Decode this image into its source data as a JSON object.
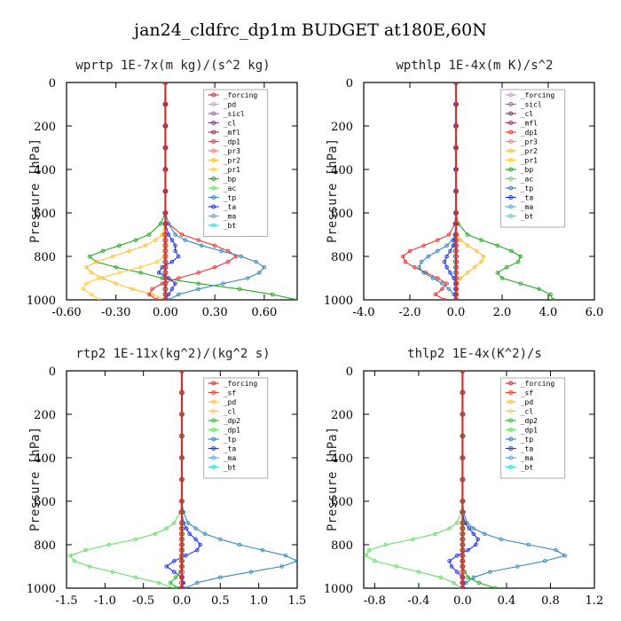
{
  "figure": {
    "title": "jan24_cldfrc_dp1m  BUDGET at180E,60N"
  },
  "colors": {
    "forcing": "#cc3333",
    "pd": "#cc99cc",
    "sicl": "#9966aa",
    "cl": "#7a3b6e",
    "mfl": "#993366",
    "dp1": "#ee3333",
    "pr3": "#ff7777",
    "pr2": "#ffbb33",
    "pr1": "#ffcc33",
    "bp": "#22aa22",
    "ac": "#66dd66",
    "tp": "#3388bb",
    "ta": "#2233ee",
    "ma": "#55aadd",
    "bt": "#33dddd",
    "sf": "#ee4422",
    "dp2": "#33bb33",
    "legend_border": "#999999"
  },
  "chart_data": [
    {
      "type": "line",
      "panel": "top-left",
      "title": "wprtp  1E-7x(m kg)/(s^2 kg)",
      "ylabel": "Pressure [hPa]",
      "xlabel": "",
      "xlim": [
        -0.6,
        0.8
      ],
      "ylim": [
        1000,
        0
      ],
      "xticks": [
        "-0.60",
        "-0.30",
        "0.00",
        "0.30",
        "0.60"
      ],
      "xtick_values": [
        -0.6,
        -0.3,
        0.0,
        0.3,
        0.6
      ],
      "yticks": [
        "0",
        "200",
        "400",
        "600",
        "800",
        "1000"
      ],
      "ytick_values": [
        0,
        200,
        400,
        600,
        800,
        1000
      ],
      "legend_position": "top-right",
      "legend": [
        "_forcing",
        "_pd",
        "_sicl",
        "_cl",
        "_mfl",
        "_dp1",
        "_pr3",
        "_pr2",
        "_pr1",
        "_bp",
        "_ac",
        "_tp",
        "_ta",
        "_ma",
        "_bt"
      ],
      "legend_colors": [
        "forcing",
        "pd",
        "sicl",
        "cl",
        "mfl",
        "dp1",
        "pr3",
        "pr2",
        "pr1",
        "bp",
        "ac",
        "tp",
        "ta",
        "ma",
        "bt"
      ],
      "pressure": [
        0,
        100,
        200,
        300,
        400,
        500,
        600,
        650,
        700,
        725,
        750,
        775,
        800,
        825,
        850,
        875,
        900,
        925,
        950,
        975,
        1000
      ],
      "series": [
        {
          "color": "bt",
          "values": [
            0,
            0,
            0,
            0,
            0,
            0,
            0,
            0,
            0,
            0,
            0,
            0,
            0,
            0,
            0,
            0,
            0,
            0,
            0,
            0,
            0
          ]
        },
        {
          "color": "bp",
          "values": [
            0,
            0,
            0,
            0,
            0,
            0,
            0,
            -0.03,
            -0.1,
            -0.18,
            -0.28,
            -0.38,
            -0.46,
            -0.42,
            -0.3,
            -0.15,
            -0.02,
            0.2,
            0.45,
            0.65,
            0.8
          ]
        },
        {
          "color": "pr2",
          "values": [
            0,
            0,
            0,
            0,
            0,
            0,
            0,
            0,
            -0.02,
            -0.06,
            -0.12,
            -0.22,
            -0.32,
            -0.42,
            -0.48,
            -0.45,
            -0.38,
            -0.3,
            -0.2,
            -0.08,
            0
          ]
        },
        {
          "color": "pr1",
          "values": [
            0,
            0,
            0,
            0,
            0,
            0,
            0,
            0,
            0,
            0,
            0,
            0,
            0,
            -0.05,
            -0.15,
            -0.28,
            -0.4,
            -0.48,
            -0.5,
            -0.45,
            -0.4
          ]
        },
        {
          "color": "dp1",
          "values": [
            0,
            0,
            0,
            0,
            0,
            0,
            0,
            0.02,
            0.1,
            0.2,
            0.3,
            0.38,
            0.43,
            0.38,
            0.3,
            0.2,
            0.08,
            -0.02,
            -0.08,
            -0.1,
            -0.05
          ]
        },
        {
          "color": "tp",
          "values": [
            0,
            0,
            0,
            0,
            0,
            0,
            0,
            0.02,
            0.06,
            0.12,
            0.22,
            0.34,
            0.46,
            0.55,
            0.6,
            0.57,
            0.5,
            0.35,
            0.2,
            0.08,
            0.02
          ]
        },
        {
          "color": "ta",
          "values": [
            0,
            0,
            0,
            0,
            0,
            0,
            0,
            0,
            0.02,
            0.04,
            0.06,
            0.06,
            0.08,
            0.04,
            -0.02,
            -0.04,
            0.02,
            0.06,
            0.04,
            0.02,
            0
          ]
        },
        {
          "color": "forcing",
          "values": [
            0,
            0,
            0,
            0,
            0,
            0,
            0,
            0,
            0,
            0,
            0,
            0,
            0,
            0,
            0,
            0,
            0,
            0,
            0,
            0,
            0
          ]
        }
      ]
    },
    {
      "type": "line",
      "panel": "top-right",
      "title": "wpthlp  1E-4x(m K)/s^2",
      "ylabel": "Pressure [hPa]",
      "xlabel": "",
      "xlim": [
        -4.0,
        6.0
      ],
      "ylim": [
        1000,
        0
      ],
      "xticks": [
        "-4.0",
        "-2.0",
        "0.0",
        "2.0",
        "4.0",
        "6.0"
      ],
      "xtick_values": [
        -4,
        -2,
        0,
        2,
        4,
        6
      ],
      "yticks": [
        "0",
        "200",
        "400",
        "600",
        "800",
        "1000"
      ],
      "ytick_values": [
        0,
        200,
        400,
        600,
        800,
        1000
      ],
      "legend_position": "top-right",
      "legend": [
        "_forcing",
        "_sicl",
        "_cl",
        "_mfl",
        "_dp1",
        "_pr3",
        "_pr2",
        "_pr1",
        "_bp",
        "_ac",
        "_tp",
        "_ta",
        "_ma",
        "_bt"
      ],
      "legend_colors": [
        "pd",
        "sicl",
        "cl",
        "mfl",
        "dp1",
        "pr3",
        "pr2",
        "pr1",
        "bp",
        "ac",
        "tp",
        "ta",
        "ma",
        "bt"
      ],
      "pressure": [
        0,
        100,
        200,
        300,
        400,
        500,
        600,
        650,
        700,
        725,
        750,
        775,
        800,
        825,
        850,
        875,
        900,
        925,
        950,
        975,
        1000
      ],
      "series": [
        {
          "color": "bt",
          "values": [
            0,
            0,
            0,
            0,
            0,
            0,
            0,
            0,
            0,
            0,
            0,
            0,
            0,
            0,
            0,
            0,
            0,
            0,
            0,
            0,
            0
          ]
        },
        {
          "color": "bp",
          "values": [
            0,
            0,
            0,
            0,
            0,
            0,
            0,
            0.1,
            0.5,
            1.1,
            1.8,
            2.4,
            2.8,
            2.7,
            2.2,
            1.8,
            2.0,
            2.8,
            3.6,
            4.1,
            4.2
          ]
        },
        {
          "color": "pr2",
          "values": [
            0,
            0,
            0,
            0,
            0,
            0,
            0,
            0,
            0.05,
            0.2,
            0.5,
            0.9,
            1.2,
            1.1,
            0.8,
            0.5,
            0.2,
            0.05,
            0,
            0,
            0
          ]
        },
        {
          "color": "dp1",
          "values": [
            0,
            0,
            0,
            0,
            0,
            0,
            0,
            -0.05,
            -0.3,
            -0.8,
            -1.4,
            -2.0,
            -2.3,
            -2.2,
            -1.8,
            -1.3,
            -0.8,
            -0.4,
            -0.6,
            -0.9,
            -0.5
          ]
        },
        {
          "color": "tp",
          "values": [
            0,
            0,
            0,
            0,
            0,
            0,
            0,
            0,
            -0.05,
            -0.15,
            -0.4,
            -0.8,
            -1.2,
            -1.5,
            -1.6,
            -1.4,
            -1.0,
            -0.6,
            -0.3,
            -0.1,
            0
          ]
        },
        {
          "color": "ta",
          "values": [
            0,
            0,
            0,
            0,
            0,
            0,
            0,
            0,
            -0.02,
            -0.06,
            -0.12,
            -0.25,
            -0.4,
            -0.5,
            -0.4,
            -0.25,
            -0.1,
            0,
            0,
            0,
            0
          ]
        },
        {
          "color": "forcing",
          "values": [
            0,
            0,
            0,
            0,
            0,
            0,
            0,
            0,
            0,
            0,
            0,
            0,
            0,
            0,
            0,
            0,
            0,
            0,
            0,
            0,
            0
          ]
        }
      ]
    },
    {
      "type": "line",
      "panel": "bottom-left",
      "title": "rtp2  1E-11x(kg^2)/(kg^2 s)",
      "ylabel": "Pressure [hPa]",
      "xlabel": "",
      "xlim": [
        -1.5,
        1.5
      ],
      "ylim": [
        1000,
        0
      ],
      "xticks": [
        "-1.5",
        "-1.0",
        "-0.5",
        "0.0",
        "0.5",
        "1.0",
        "1.5"
      ],
      "xtick_values": [
        -1.5,
        -1.0,
        -0.5,
        0.0,
        0.5,
        1.0,
        1.5
      ],
      "yticks": [
        "0",
        "200",
        "400",
        "600",
        "800",
        "1000"
      ],
      "ytick_values": [
        0,
        200,
        400,
        600,
        800,
        1000
      ],
      "legend_position": "top-right",
      "legend": [
        "_forcing",
        "_sf",
        "_pd",
        "_cl",
        "_dp2",
        "_dp1",
        "_tp",
        "_ta",
        "_ma",
        "_bt"
      ],
      "legend_colors": [
        "forcing",
        "sf",
        "pr2",
        "pr1",
        "dp2",
        "ac",
        "tp",
        "ta",
        "ma",
        "bt"
      ],
      "pressure": [
        0,
        100,
        200,
        300,
        400,
        500,
        600,
        650,
        700,
        725,
        750,
        775,
        800,
        825,
        850,
        875,
        900,
        925,
        950,
        975,
        1000
      ],
      "series": [
        {
          "color": "ac",
          "values": [
            0,
            0,
            0,
            0,
            0,
            0,
            0,
            -0.02,
            -0.1,
            -0.2,
            -0.35,
            -0.6,
            -0.95,
            -1.25,
            -1.45,
            -1.4,
            -1.2,
            -0.9,
            -0.6,
            -0.3,
            -0.1
          ]
        },
        {
          "color": "tp",
          "values": [
            0,
            0,
            0,
            0,
            0,
            0,
            0,
            0.02,
            0.08,
            0.18,
            0.3,
            0.5,
            0.75,
            1.05,
            1.35,
            1.5,
            1.3,
            0.9,
            0.5,
            0.2,
            0.05
          ]
        },
        {
          "color": "ta",
          "values": [
            0,
            0,
            0,
            0,
            0,
            0,
            0,
            0,
            0.02,
            0.06,
            0.1,
            0.18,
            0.24,
            0.2,
            0.05,
            -0.1,
            -0.2,
            -0.1,
            0,
            0.02,
            0
          ]
        },
        {
          "color": "dp2",
          "values": [
            0,
            0,
            0,
            0,
            0,
            0,
            0,
            0,
            0,
            0,
            0,
            0,
            0,
            0,
            0,
            0,
            0,
            -0.02,
            -0.08,
            -0.15,
            -0.05
          ]
        },
        {
          "color": "forcing",
          "values": [
            0,
            0,
            0,
            0,
            0,
            0,
            0,
            0,
            0,
            0,
            0,
            0,
            0,
            0,
            0,
            0,
            0,
            0,
            0,
            0,
            0
          ]
        }
      ]
    },
    {
      "type": "line",
      "panel": "bottom-right",
      "title": "thlp2  1E-4x(K^2)/s",
      "ylabel": "Pressure [hPa]",
      "xlabel": "",
      "xlim": [
        -0.9,
        1.2
      ],
      "ylim": [
        1000,
        0
      ],
      "xticks": [
        "-0.8",
        "-0.4",
        "0.0",
        "0.4",
        "0.8",
        "1.2"
      ],
      "xtick_values": [
        -0.8,
        -0.4,
        0.0,
        0.4,
        0.8,
        1.2
      ],
      "yticks": [
        "0",
        "200",
        "400",
        "600",
        "800",
        "1000"
      ],
      "ytick_values": [
        0,
        200,
        400,
        600,
        800,
        1000
      ],
      "legend_position": "top-right",
      "legend": [
        "_forcing",
        "_sf",
        "_pd",
        "_cl",
        "_dp2",
        "_dp1",
        "_tp",
        "_ta",
        "_ma",
        "_bt"
      ],
      "legend_colors": [
        "forcing",
        "sf",
        "pr2",
        "pr1",
        "dp2",
        "ac",
        "tp",
        "ta",
        "ma",
        "bt"
      ],
      "pressure": [
        0,
        100,
        200,
        300,
        400,
        500,
        600,
        650,
        700,
        725,
        750,
        775,
        800,
        825,
        850,
        875,
        900,
        925,
        950,
        975,
        1000
      ],
      "series": [
        {
          "color": "ac",
          "values": [
            0,
            0,
            0,
            0,
            0,
            0,
            0,
            -0.01,
            -0.05,
            -0.12,
            -0.25,
            -0.45,
            -0.7,
            -0.85,
            -0.88,
            -0.8,
            -0.6,
            -0.4,
            -0.2,
            -0.08,
            -0.02
          ]
        },
        {
          "color": "tp",
          "values": [
            0,
            0,
            0,
            0,
            0,
            0,
            0,
            0.01,
            0.04,
            0.1,
            0.2,
            0.35,
            0.6,
            0.85,
            0.93,
            0.75,
            0.5,
            0.25,
            0.1,
            0.03,
            0
          ]
        },
        {
          "color": "ta",
          "values": [
            0,
            0,
            0,
            0,
            0,
            0,
            0,
            0,
            0.02,
            0.06,
            0.1,
            0.14,
            0.12,
            0.05,
            -0.05,
            -0.12,
            -0.1,
            -0.05,
            0,
            0,
            0
          ]
        },
        {
          "color": "bp",
          "values": [
            0,
            0,
            0,
            0,
            0,
            0,
            0,
            0,
            0,
            0,
            0,
            0,
            0,
            0,
            0,
            0,
            0,
            0.02,
            0.05,
            0.15,
            0.3
          ]
        },
        {
          "color": "forcing",
          "values": [
            0,
            0,
            0,
            0,
            0,
            0,
            0,
            0,
            0,
            0,
            0,
            0,
            0,
            0,
            0,
            0,
            0,
            0,
            0,
            0,
            0
          ]
        }
      ]
    }
  ]
}
